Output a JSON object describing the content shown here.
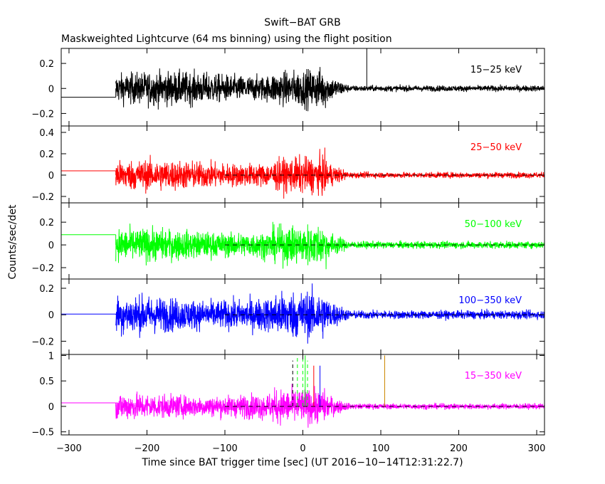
{
  "chart_data": {
    "type": "line",
    "title": "Swift−BAT GRB",
    "subtitle": "Maskweighted Lightcurve (64 ms binning) using the flight position",
    "xlabel": "Time since BAT trigger time [sec] (UT 2016−10−14T12:31:22.7)",
    "ylabel": "Counts/sec/det",
    "xlim": [
      -310,
      310
    ],
    "x_ticks": [
      -300,
      -200,
      -100,
      0,
      100,
      200,
      300
    ],
    "x_tick_labels": [
      "−300",
      "−200",
      "−100",
      "0",
      "100",
      "200",
      "300"
    ],
    "burst_window_sec": [
      -240,
      50
    ],
    "dashed_zero_from_sec": -100,
    "panels": [
      {
        "name": "15−25 keV",
        "color": "#000000",
        "ylim": [
          -0.3,
          0.32
        ],
        "y_ticks": [
          -0.2,
          0,
          0.2
        ],
        "y_tick_labels": [
          "−0.2",
          "0",
          "0.2"
        ],
        "pre_data_level": -0.07,
        "active_amplitude": 0.15,
        "quiet_amplitude": 0.03,
        "dashed_zero": false,
        "marker_lines": [
          {
            "x": 82,
            "y": 0.32,
            "color": "#000000",
            "dash": false
          }
        ]
      },
      {
        "name": "25−50 keV",
        "color": "#ff0000",
        "ylim": [
          -0.26,
          0.46
        ],
        "y_ticks": [
          -0.2,
          0,
          0.2,
          0.4
        ],
        "y_tick_labels": [
          "−0.2",
          "0",
          "0.2",
          "0.4"
        ],
        "pre_data_level": 0.04,
        "active_amplitude": 0.16,
        "quiet_amplitude": 0.035,
        "dashed_zero": true,
        "marker_lines": []
      },
      {
        "name": "50−100 keV",
        "color": "#00ff00",
        "ylim": [
          -0.3,
          0.37
        ],
        "y_ticks": [
          -0.2,
          0,
          0.2
        ],
        "y_tick_labels": [
          "−0.2",
          "0",
          "0.2"
        ],
        "pre_data_level": 0.09,
        "active_amplitude": 0.16,
        "quiet_amplitude": 0.04,
        "dashed_zero": true,
        "marker_lines": []
      },
      {
        "name": "100−350 keV",
        "color": "#0000ff",
        "ylim": [
          -0.3,
          0.27
        ],
        "y_ticks": [
          -0.2,
          0,
          0.2
        ],
        "y_tick_labels": [
          "−0.2",
          "0",
          "0.2"
        ],
        "pre_data_level": 0.005,
        "active_amplitude": 0.16,
        "quiet_amplitude": 0.04,
        "dashed_zero": true,
        "marker_lines": []
      },
      {
        "name": "15−350 keV",
        "color": "#ff00ff",
        "ylim": [
          -0.56,
          1.02
        ],
        "y_ticks": [
          -0.5,
          0,
          0.5,
          1
        ],
        "y_tick_labels": [
          "−0.5",
          "0",
          "0.5",
          "1"
        ],
        "pre_data_level": 0.07,
        "active_amplitude": 0.3,
        "quiet_amplitude": 0.07,
        "dashed_zero": true,
        "marker_lines": [
          {
            "x": -13,
            "y": 0.9,
            "color": "#000000",
            "dash": true
          },
          {
            "x": -7,
            "y": 0.95,
            "color": "#00ff00",
            "dash": true
          },
          {
            "x": 0,
            "y": 1.0,
            "color": "#00ff00",
            "dash": true
          },
          {
            "x": 3,
            "y": 1.0,
            "color": "#00ff00",
            "dash": false
          },
          {
            "x": 6,
            "y": 0.9,
            "color": "#00ff00",
            "dash": true
          },
          {
            "x": 14,
            "y": 0.8,
            "color": "#ff0000",
            "dash": false
          },
          {
            "x": 22,
            "y": 0.8,
            "color": "#0000ff",
            "dash": false
          },
          {
            "x": 105,
            "y": 1.0,
            "color": "#cc8800",
            "dash": false
          }
        ]
      }
    ]
  }
}
